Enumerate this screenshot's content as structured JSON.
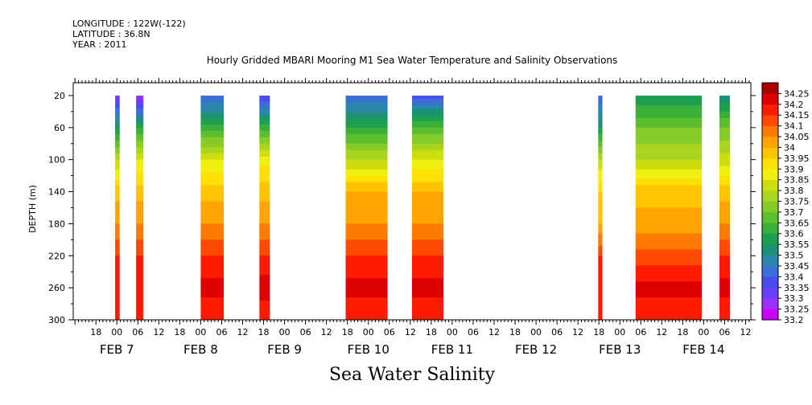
{
  "header": {
    "longitude": "LONGITUDE : 122W(-122)",
    "latitude": "LATITUDE : 36.8N",
    "year": "YEAR : 2011"
  },
  "chart_data": {
    "type": "heatmap",
    "title": "Hourly Gridded MBARI Mooring M1 Sea Water Temperature and Salinity Observations",
    "subtitle": "Sea Water Salinity",
    "ylabel": "DEPTH (m)",
    "ylim": [
      300,
      0
    ],
    "yticks": [
      20,
      60,
      100,
      140,
      180,
      220,
      260,
      300
    ],
    "x_hour_ticks": [
      {
        "t": -6,
        "label": "18"
      },
      {
        "t": 0,
        "label": "00"
      },
      {
        "t": 6,
        "label": "06"
      },
      {
        "t": 12,
        "label": "12"
      },
      {
        "t": 18,
        "label": "18"
      },
      {
        "t": 24,
        "label": "00"
      },
      {
        "t": 30,
        "label": "06"
      },
      {
        "t": 36,
        "label": "12"
      },
      {
        "t": 42,
        "label": "18"
      },
      {
        "t": 48,
        "label": "00"
      },
      {
        "t": 54,
        "label": "06"
      },
      {
        "t": 60,
        "label": "12"
      },
      {
        "t": 66,
        "label": "18"
      },
      {
        "t": 72,
        "label": "00"
      },
      {
        "t": 78,
        "label": "06"
      },
      {
        "t": 84,
        "label": "12"
      },
      {
        "t": 90,
        "label": "18"
      },
      {
        "t": 96,
        "label": "00"
      },
      {
        "t": 102,
        "label": "06"
      },
      {
        "t": 108,
        "label": "12"
      },
      {
        "t": 114,
        "label": "18"
      },
      {
        "t": 120,
        "label": "00"
      },
      {
        "t": 126,
        "label": "06"
      },
      {
        "t": 132,
        "label": "12"
      },
      {
        "t": 138,
        "label": "18"
      },
      {
        "t": 144,
        "label": "00"
      },
      {
        "t": 150,
        "label": "06"
      },
      {
        "t": 156,
        "label": "12"
      },
      {
        "t": 162,
        "label": "18"
      },
      {
        "t": 168,
        "label": "00"
      },
      {
        "t": 174,
        "label": "06"
      },
      {
        "t": 180,
        "label": "12"
      }
    ],
    "x_day_labels": [
      {
        "t": 0,
        "label": "FEB  7"
      },
      {
        "t": 24,
        "label": "FEB  8"
      },
      {
        "t": 48,
        "label": "FEB  9"
      },
      {
        "t": 72,
        "label": "FEB 10"
      },
      {
        "t": 96,
        "label": "FEB 11"
      },
      {
        "t": 120,
        "label": "FEB 12"
      },
      {
        "t": 144,
        "label": "FEB 13"
      },
      {
        "t": 168,
        "label": "FEB 14"
      }
    ],
    "colorbar_levels": [
      "33.2",
      "33.25",
      "33.3",
      "33.35",
      "33.4",
      "33.45",
      "33.5",
      "33.55",
      "33.6",
      "33.65",
      "33.7",
      "33.75",
      "33.8",
      "33.85",
      "33.9",
      "33.95",
      "34",
      "34.05",
      "34.1",
      "34.15",
      "34.2",
      "34.25"
    ],
    "colorbar_colors": [
      "#cc00ff",
      "#9a32ff",
      "#6a3fff",
      "#4a4cf0",
      "#3a6fd8",
      "#2c86b0",
      "#1d9078",
      "#1aa050",
      "#3aaf3a",
      "#5cbf30",
      "#86cc28",
      "#aad420",
      "#ccdd10",
      "#eef010",
      "#ffe000",
      "#ffc400",
      "#ffa400",
      "#ff7a00",
      "#ff4a00",
      "#ff1a00",
      "#dd0000",
      "#aa0000"
    ],
    "segments": [
      {
        "t0": -0.5,
        "t1": 0.8,
        "profile": [
          {
            "depth": 20,
            "value": 33.3
          },
          {
            "depth": 60,
            "value": 33.55
          },
          {
            "depth": 100,
            "value": 33.8
          },
          {
            "depth": 140,
            "value": 33.98
          },
          {
            "depth": 180,
            "value": 34.05
          },
          {
            "depth": 220,
            "value": 34.15
          },
          {
            "depth": 260,
            "value": 34.2
          },
          {
            "depth": 300,
            "value": 34.15
          }
        ]
      },
      {
        "t0": 5.5,
        "t1": 7.6,
        "profile": [
          {
            "depth": 20,
            "value": 33.25
          },
          {
            "depth": 60,
            "value": 33.6
          },
          {
            "depth": 100,
            "value": 33.85
          },
          {
            "depth": 140,
            "value": 33.98
          },
          {
            "depth": 180,
            "value": 34.05
          },
          {
            "depth": 220,
            "value": 34.15
          },
          {
            "depth": 260,
            "value": 34.2
          },
          {
            "depth": 300,
            "value": 34.15
          }
        ]
      },
      {
        "t0": 24,
        "t1": 30.6,
        "profile": [
          {
            "depth": 20,
            "value": 33.4
          },
          {
            "depth": 60,
            "value": 33.62
          },
          {
            "depth": 100,
            "value": 33.85
          },
          {
            "depth": 140,
            "value": 33.98
          },
          {
            "depth": 180,
            "value": 34.05
          },
          {
            "depth": 220,
            "value": 34.15
          },
          {
            "depth": 260,
            "value": 34.22
          },
          {
            "depth": 300,
            "value": 34.15
          }
        ]
      },
      {
        "t0": 40.8,
        "t1": 43.8,
        "profile": [
          {
            "depth": 20,
            "value": 33.35
          },
          {
            "depth": 60,
            "value": 33.62
          },
          {
            "depth": 100,
            "value": 33.88
          },
          {
            "depth": 140,
            "value": 33.98
          },
          {
            "depth": 180,
            "value": 34.05
          },
          {
            "depth": 220,
            "value": 34.15
          },
          {
            "depth": 260,
            "value": 34.23
          },
          {
            "depth": 300,
            "value": 34.15
          }
        ]
      },
      {
        "t0": 65.5,
        "t1": 77.5,
        "profile": [
          {
            "depth": 20,
            "value": 33.4
          },
          {
            "depth": 60,
            "value": 33.6
          },
          {
            "depth": 100,
            "value": 33.8
          },
          {
            "depth": 140,
            "value": 34.0
          },
          {
            "depth": 180,
            "value": 34.05
          },
          {
            "depth": 220,
            "value": 34.15
          },
          {
            "depth": 260,
            "value": 34.22
          },
          {
            "depth": 300,
            "value": 34.15
          }
        ]
      },
      {
        "t0": 84.5,
        "t1": 93.5,
        "profile": [
          {
            "depth": 20,
            "value": 33.38
          },
          {
            "depth": 60,
            "value": 33.65
          },
          {
            "depth": 100,
            "value": 33.85
          },
          {
            "depth": 140,
            "value": 34.0
          },
          {
            "depth": 180,
            "value": 34.05
          },
          {
            "depth": 220,
            "value": 34.15
          },
          {
            "depth": 260,
            "value": 34.22
          },
          {
            "depth": 300,
            "value": 34.15
          }
        ]
      },
      {
        "t0": 137.8,
        "t1": 139.0,
        "profile": [
          {
            "depth": 20,
            "value": 33.4
          },
          {
            "depth": 60,
            "value": 33.55
          },
          {
            "depth": 100,
            "value": 33.8
          },
          {
            "depth": 140,
            "value": 33.95
          },
          {
            "depth": 180,
            "value": 34.0
          },
          {
            "depth": 220,
            "value": 34.15
          },
          {
            "depth": 260,
            "value": 34.2
          },
          {
            "depth": 300,
            "value": 34.15
          }
        ]
      },
      {
        "t0": 148.5,
        "t1": 167.5,
        "profile": [
          {
            "depth": 20,
            "value": 33.55
          },
          {
            "depth": 60,
            "value": 33.7
          },
          {
            "depth": 100,
            "value": 33.8
          },
          {
            "depth": 140,
            "value": 33.98
          },
          {
            "depth": 180,
            "value": 34.02
          },
          {
            "depth": 220,
            "value": 34.12
          },
          {
            "depth": 260,
            "value": 34.22
          },
          {
            "depth": 300,
            "value": 34.15
          }
        ]
      },
      {
        "t0": 172.5,
        "t1": 175.5,
        "profile": [
          {
            "depth": 20,
            "value": 33.5
          },
          {
            "depth": 60,
            "value": 33.7
          },
          {
            "depth": 100,
            "value": 33.82
          },
          {
            "depth": 140,
            "value": 33.98
          },
          {
            "depth": 180,
            "value": 34.05
          },
          {
            "depth": 220,
            "value": 34.15
          },
          {
            "depth": 260,
            "value": 34.22
          },
          {
            "depth": 300,
            "value": 34.15
          }
        ]
      }
    ]
  }
}
